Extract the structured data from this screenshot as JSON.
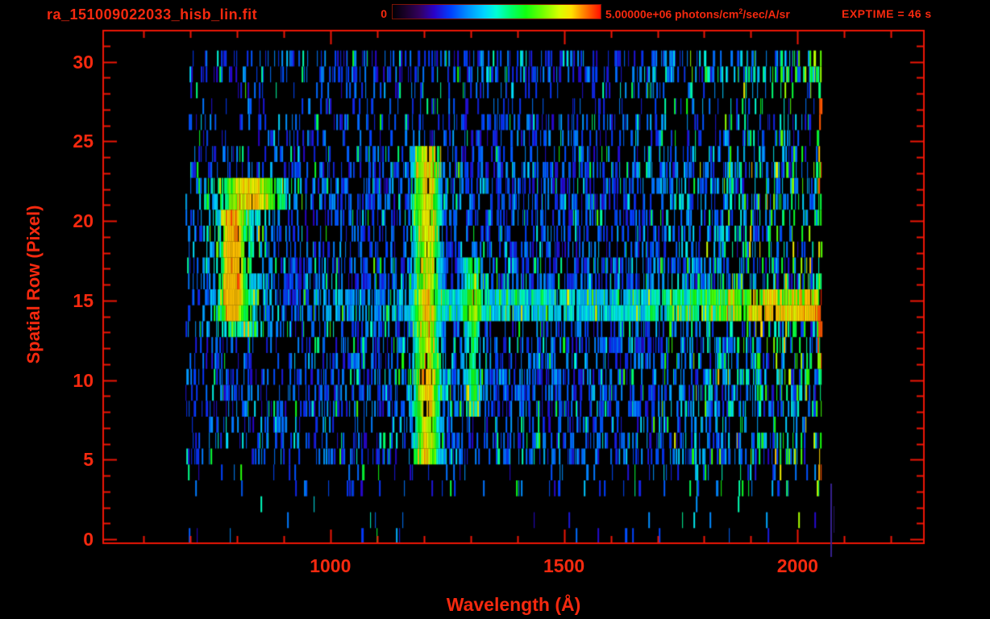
{
  "header": {
    "title": "ra_151009022033_hisb_lin.fit",
    "colorbar_min": "0",
    "colorbar_max_pre": "5.00000e+06 photons/cm",
    "colorbar_max_sup": "2",
    "colorbar_max_post": "/sec/A/sr",
    "exptime": "EXPTIME = 46 s"
  },
  "colors": {
    "text_red": "#f5290f",
    "axis_red": "#ee1606",
    "background": "#000000"
  },
  "chart_data": {
    "type": "heatmap",
    "title": "ra_151009022033_hisb_lin.fit",
    "xlabel": "Wavelength (Å)",
    "ylabel": "Spatial Row (Pixel)",
    "xlim": [
      512,
      2272
    ],
    "ylim": [
      -0.3,
      32
    ],
    "x_ticks": [
      1000,
      1500,
      2000
    ],
    "x_minor_step": 100,
    "x_major_multiple": 500,
    "y_ticks": [
      0,
      5,
      10,
      15,
      20,
      25,
      30
    ],
    "y_minor_step": 1,
    "y_major_multiple": 5,
    "colorbar": {
      "min_label": "0",
      "max_value": 5000000,
      "units": "photons/cm2/sec/A/sr",
      "scale": "lin",
      "exposure_s": 46
    },
    "data_domain": {
      "wavelength": [
        690,
        2052
      ],
      "rows": [
        0,
        31
      ]
    },
    "noise_bands": [
      {
        "rows": [
          29,
          30
        ],
        "density": 0.42
      },
      {
        "rows": [
          27,
          28
        ],
        "density": 0.16
      },
      {
        "rows": [
          24,
          26
        ],
        "density": 0.3
      },
      {
        "rows": [
          21,
          23
        ],
        "density": 0.48
      },
      {
        "rows": [
          18,
          20
        ],
        "density": 0.4
      },
      {
        "rows": [
          16,
          17
        ],
        "density": 0.55
      },
      {
        "rows": [
          14,
          15
        ],
        "density": 0.62
      },
      {
        "rows": [
          11,
          13
        ],
        "density": 0.42
      },
      {
        "rows": [
          8,
          10
        ],
        "density": 0.5
      },
      {
        "rows": [
          7,
          7
        ],
        "density": 0.28
      },
      {
        "rows": [
          5,
          6
        ],
        "density": 0.42
      },
      {
        "rows": [
          3,
          4
        ],
        "density": 0.1
      },
      {
        "rows": [
          0,
          2
        ],
        "density": 0.025
      }
    ],
    "features": {
      "lyman_alpha_line": {
        "center": 1207,
        "sigma": 18,
        "rows": [
          5,
          24
        ],
        "amp": 0.62
      },
      "oi_line": {
        "center": 1306,
        "sigma": 13,
        "rows": [
          8,
          17
        ],
        "amp": 0.3
      },
      "arc_core": {
        "center": 792,
        "sigma": 13,
        "rows": [
          14,
          20
        ],
        "amp": 0.66
      },
      "arc_halo": {
        "center": 802,
        "sigma": 42,
        "rows": [
          13,
          22
        ],
        "amp": 0.26
      },
      "arc_top": {
        "center": 848,
        "sigma": 46,
        "rows": [
          21,
          22
        ],
        "amp": 0.38
      },
      "continuum_row": {
        "rows": [
          14,
          15
        ],
        "wl_start": 1235,
        "bright_from": 1710,
        "very_bright_from": 1890
      },
      "detector_edge": {
        "wl": [
          2044,
          2056
        ],
        "rows": [
          3,
          30
        ],
        "density": 0.45
      },
      "long_wl_green_boost": {
        "from": 1620,
        "max_add": 0.55
      }
    },
    "artifact_lines": [
      {
        "x": 1030,
        "y_from": 600,
        "y_to": 691,
        "width": 2,
        "color": "#35208c"
      },
      {
        "x": 1034,
        "y_from": 628,
        "y_to": 661,
        "width": 1,
        "color": "#241566"
      }
    ],
    "render": {
      "seed": 151009,
      "colormap_stops": [
        [
          0.0,
          "#000004"
        ],
        [
          0.06,
          "#1a0128"
        ],
        [
          0.13,
          "#33015e"
        ],
        [
          0.2,
          "#2a02c8"
        ],
        [
          0.28,
          "#0040ff"
        ],
        [
          0.36,
          "#0090ff"
        ],
        [
          0.44,
          "#00d4ff"
        ],
        [
          0.5,
          "#00ffd4"
        ],
        [
          0.57,
          "#00ff6a"
        ],
        [
          0.64,
          "#10ff10"
        ],
        [
          0.72,
          "#70ff00"
        ],
        [
          0.8,
          "#d8ff00"
        ],
        [
          0.86,
          "#ffe000"
        ],
        [
          0.91,
          "#ff9000"
        ],
        [
          0.96,
          "#ff4800"
        ],
        [
          1.0,
          "#ff0f00"
        ]
      ]
    }
  }
}
